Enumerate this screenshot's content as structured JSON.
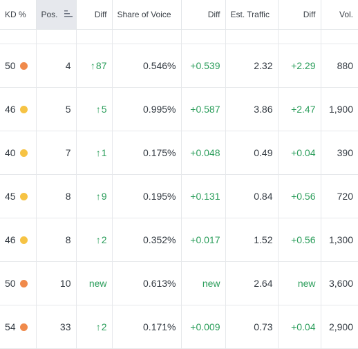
{
  "headers": {
    "kd": "KD %",
    "pos": "Pos.",
    "diff1": "Diff",
    "share_of_voice": "Share of Voice",
    "diff2": "Diff",
    "est_traffic": "Est. Traffic",
    "diff3": "Diff",
    "vol": "Vol."
  },
  "icons": {
    "sort": "sort-bars-icon",
    "difficulty_dot": "difficulty-dot-icon",
    "arrow": "arrow-up-icon"
  },
  "colors": {
    "orange": "#f08a4b",
    "yellow": "#f6c344",
    "positive": "#2a9d5a"
  },
  "rows": [
    {
      "kd": "50",
      "kd_color": "orange",
      "pos": "4",
      "pos_diff": "87",
      "pos_diff_arrow": "↑",
      "sov": "0.546%",
      "sov_diff": "+0.539",
      "traffic": "2.32",
      "traffic_diff": "+2.29",
      "vol": "880"
    },
    {
      "kd": "46",
      "kd_color": "yellow",
      "pos": "5",
      "pos_diff": "5",
      "pos_diff_arrow": "↑",
      "sov": "0.995%",
      "sov_diff": "+0.587",
      "traffic": "3.86",
      "traffic_diff": "+2.47",
      "vol": "1,900"
    },
    {
      "kd": "40",
      "kd_color": "yellow",
      "pos": "7",
      "pos_diff": "1",
      "pos_diff_arrow": "↑",
      "sov": "0.175%",
      "sov_diff": "+0.048",
      "traffic": "0.49",
      "traffic_diff": "+0.04",
      "vol": "390"
    },
    {
      "kd": "45",
      "kd_color": "yellow",
      "pos": "8",
      "pos_diff": "9",
      "pos_diff_arrow": "↑",
      "sov": "0.195%",
      "sov_diff": "+0.131",
      "traffic": "0.84",
      "traffic_diff": "+0.56",
      "vol": "720"
    },
    {
      "kd": "46",
      "kd_color": "yellow",
      "pos": "8",
      "pos_diff": "2",
      "pos_diff_arrow": "↑",
      "sov": "0.352%",
      "sov_diff": "+0.017",
      "traffic": "1.52",
      "traffic_diff": "+0.56",
      "vol": "1,300"
    },
    {
      "kd": "50",
      "kd_color": "orange",
      "pos": "10",
      "pos_diff": "new",
      "pos_diff_arrow": "",
      "sov": "0.613%",
      "sov_diff": "new",
      "traffic": "2.64",
      "traffic_diff": "new",
      "vol": "3,600"
    },
    {
      "kd": "54",
      "kd_color": "orange",
      "pos": "33",
      "pos_diff": "2",
      "pos_diff_arrow": "↑",
      "sov": "0.171%",
      "sov_diff": "+0.009",
      "traffic": "0.73",
      "traffic_diff": "+0.04",
      "vol": "2,900"
    }
  ]
}
